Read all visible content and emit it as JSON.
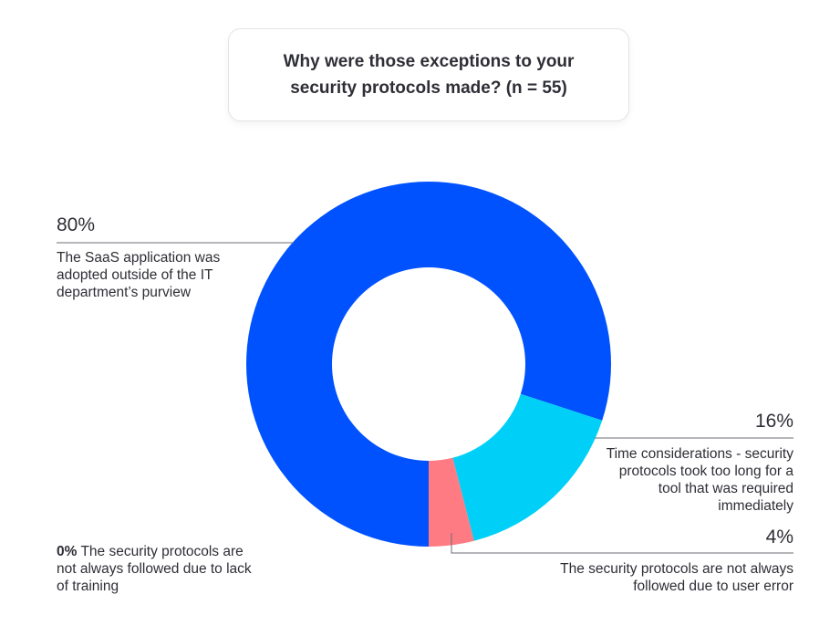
{
  "chart_data": {
    "type": "pie",
    "variant": "donut",
    "title": "Why were those exceptions to your security protocols made? (n = 55)",
    "slices": [
      {
        "value_label": "80%",
        "value": 80,
        "label": "The SaaS application was adopted outside of the IT department’s purview",
        "color": "#0052ff"
      },
      {
        "value_label": "16%",
        "value": 16,
        "label": "Time considerations - security protocols took too long for a tool that was required immediately",
        "color": "#00d0f8"
      },
      {
        "value_label": "4%",
        "value": 4,
        "label": "The security protocols are not always followed due to user error",
        "color": "#ff7b83"
      },
      {
        "value_label": "0%",
        "value": 0,
        "label": "The security protocols are not always followed due to lack of training",
        "color": "#8a8a8a"
      }
    ]
  }
}
